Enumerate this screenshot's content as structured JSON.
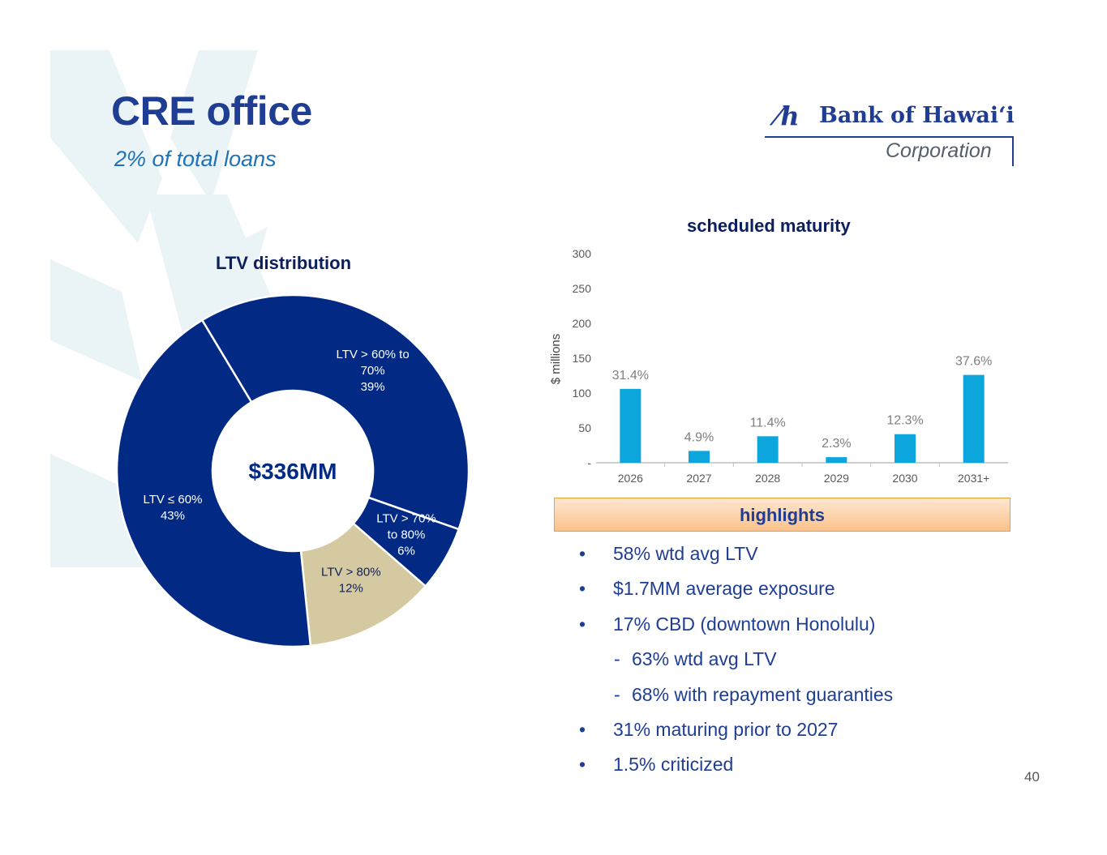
{
  "title": "CRE office",
  "subtitle": "2% of total loans",
  "logo": {
    "mark": "⁄h",
    "brand": "Bank of Hawaiʻi",
    "corp": "Corporation"
  },
  "page_number": "40",
  "colors": {
    "navy": "#022a84",
    "tan": "#d5c9a1",
    "bar": "#0ca6dd",
    "title": "#1f3e93"
  },
  "highlights": {
    "heading": "highlights",
    "items": [
      {
        "marker": "•",
        "text": "58% wtd avg LTV"
      },
      {
        "marker": "•",
        "text": "$1.7MM average exposure"
      },
      {
        "marker": "•",
        "text": "17% CBD (downtown Honolulu)"
      },
      {
        "marker": "-",
        "text": "63% wtd avg LTV"
      },
      {
        "marker": "-",
        "text": "68% with repayment guaranties"
      },
      {
        "marker": "•",
        "text": "31% maturing prior to 2027"
      },
      {
        "marker": "•",
        "text": "1.5% criticized"
      }
    ]
  },
  "chart_data": [
    {
      "type": "pie",
      "title": "LTV distribution",
      "center_label": "$336MM",
      "slices": [
        {
          "label_lines": [
            "LTV > 60% to",
            "70%",
            "39%"
          ],
          "value": 39,
          "color": "#022a84",
          "label_color": "#ffffff"
        },
        {
          "label_lines": [
            "LTV > 70%",
            "to 80%",
            "6%"
          ],
          "value": 6,
          "color": "#022a84",
          "label_color": "#ffffff"
        },
        {
          "label_lines": [
            "LTV > 80%",
            "12%"
          ],
          "value": 12,
          "color": "#d5c9a1",
          "label_color": "#0a1f5c"
        },
        {
          "label_lines": [
            "LTV ≤ 60%",
            "43%"
          ],
          "value": 43,
          "color": "#022a84",
          "label_color": "#ffffff"
        }
      ]
    },
    {
      "type": "bar",
      "title": "scheduled maturity",
      "ylabel": "$ millions",
      "ylim": [
        0,
        300
      ],
      "yticks": [
        "-",
        "50",
        "100",
        "150",
        "200",
        "250",
        "300"
      ],
      "categories": [
        "2026",
        "2027",
        "2028",
        "2029",
        "2030",
        "2031+"
      ],
      "values": [
        106,
        17,
        38,
        8,
        41,
        126
      ],
      "data_labels": [
        "31.4%",
        "4.9%",
        "11.4%",
        "2.3%",
        "12.3%",
        "37.6%"
      ]
    }
  ]
}
